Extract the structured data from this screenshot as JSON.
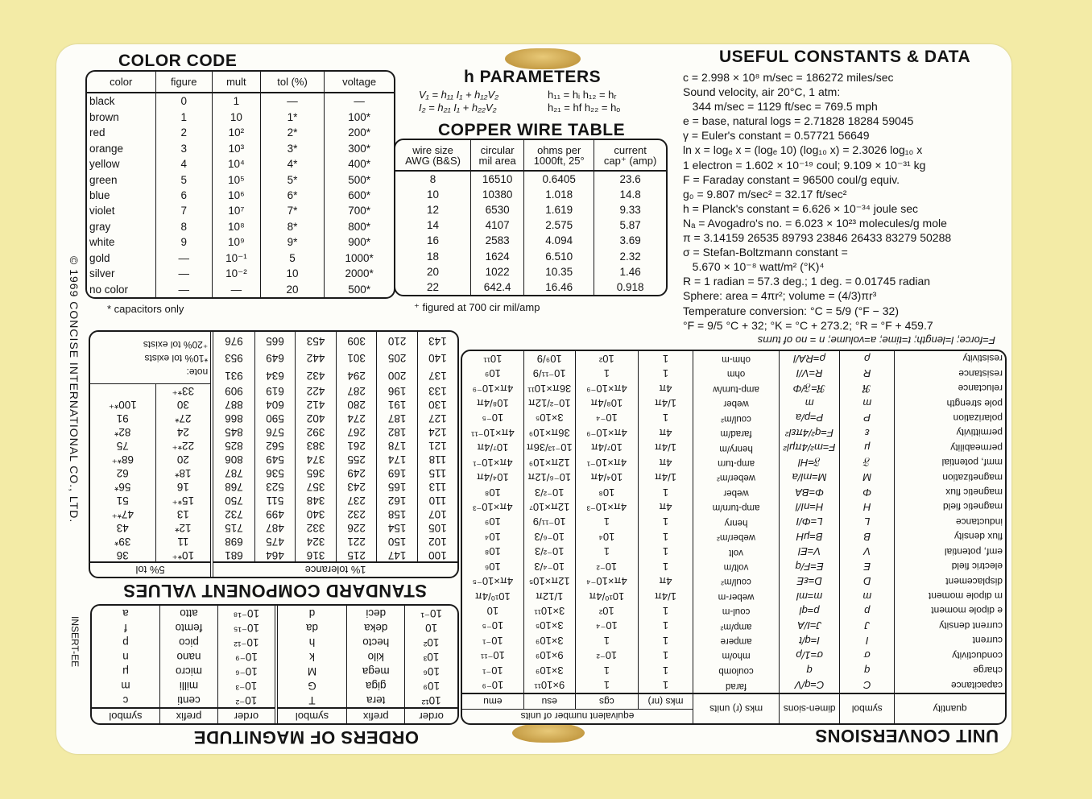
{
  "colors": {
    "background": "#f3eba6",
    "card": "#fdfdf9",
    "ink": "#141414",
    "slot": "#c9a24a"
  },
  "color_code": {
    "title": "COLOR CODE",
    "headers": [
      "color",
      "figure",
      "mult",
      "tol (%)",
      "voltage"
    ],
    "rows": [
      [
        "black",
        "0",
        "1",
        "—",
        "—"
      ],
      [
        "brown",
        "1",
        "10",
        "1*",
        "100*"
      ],
      [
        "red",
        "2",
        "10²",
        "2*",
        "200*"
      ],
      [
        "orange",
        "3",
        "10³",
        "3*",
        "300*"
      ],
      [
        "yellow",
        "4",
        "10⁴",
        "4*",
        "400*"
      ],
      [
        "green",
        "5",
        "10⁵",
        "5*",
        "500*"
      ],
      [
        "blue",
        "6",
        "10⁶",
        "6*",
        "600*"
      ],
      [
        "violet",
        "7",
        "10⁷",
        "7*",
        "700*"
      ],
      [
        "gray",
        "8",
        "10⁸",
        "8*",
        "800*"
      ],
      [
        "white",
        "9",
        "10⁹",
        "9*",
        "900*"
      ],
      [
        "gold",
        "—",
        "10⁻¹",
        "5",
        "1000*"
      ],
      [
        "silver",
        "—",
        "10⁻²",
        "10",
        "2000*"
      ],
      [
        "no color",
        "—",
        "—",
        "20",
        "500*"
      ]
    ],
    "footnote": "* capacitors only"
  },
  "h_parameters": {
    "title": "h PARAMETERS",
    "eq1": "V₁ = h₁₁ I₁ + h₁₂V₂",
    "eq2": "I₂ = h₂₁ I₁ + h₂₂V₂",
    "def1": "h₁₁ = hᵢ   h₁₂ = hᵣ",
    "def2": "h₂₁ = hf   h₂₂ = hₒ"
  },
  "copper_wire": {
    "title": "COPPER WIRE TABLE",
    "headers": [
      [
        "wire size",
        "AWG (B&S)"
      ],
      [
        "circular",
        "mil area"
      ],
      [
        "ohms per",
        "1000ft, 25°"
      ],
      [
        "current",
        "cap⁺ (amp)"
      ]
    ],
    "rows": [
      [
        "8",
        "16510",
        "0.6405",
        "23.6"
      ],
      [
        "10",
        "10380",
        "1.018",
        "14.8"
      ],
      [
        "12",
        "6530",
        "1.619",
        "9.33"
      ],
      [
        "14",
        "4107",
        "2.575",
        "5.87"
      ],
      [
        "16",
        "2583",
        "4.094",
        "3.69"
      ],
      [
        "18",
        "1624",
        "6.510",
        "2.32"
      ],
      [
        "20",
        "1022",
        "10.35",
        "1.46"
      ],
      [
        "22",
        "642.4",
        "16.46",
        "0.918"
      ]
    ],
    "footnote": "⁺ figured at 700 cir mil/amp"
  },
  "constants": {
    "title": "USEFUL CONSTANTS & DATA",
    "lines": [
      "c = 2.998 × 10⁸ m/sec = 186272 miles/sec",
      "Sound velocity, air 20°C, 1 atm:",
      "   344 m/sec = 1129 ft/sec = 769.5 mph",
      "e = base, natural logs = 2.71828 18284 59045",
      "γ = Euler's constant = 0.57721 56649",
      "ln x = logₑ x = (logₑ 10) (log₁₀ x) = 2.3026 log₁₀ x",
      "1 electron = 1.602 × 10⁻¹⁹ coul; 9.109 × 10⁻³¹ kg",
      "F = Faraday constant = 96500 coul/g equiv.",
      "g₀ = 9.807 m/sec² = 32.17 ft/sec²",
      "h = Planck's constant = 6.626 × 10⁻³⁴ joule sec",
      "Nₐ = Avogadro's no. = 6.023 × 10²³ molecules/g mole",
      "π = 3.14159 26535 89793 23846 26433 83279 50288",
      "σ = Stefan-Boltzmann constant =",
      "   5.670 × 10⁻⁸ watt/m² (°K)⁴",
      "R = 1 radian = 57.3 deg.; 1 deg. = 0.01745 radian",
      "Sphere: area = 4πr²; volume = (4/3)πr³",
      "Temperature conversion: °C = 5/9 (°F − 32)",
      "°F = 9/5 °C + 32; °K = °C + 273.2; °R = °F + 459.7"
    ]
  },
  "copyright": "© 1969 CONCISE INTERNATIONAL CO., LTD.",
  "insert_code": "INSERT-EE",
  "standard_values": {
    "title": "STANDARD COMPONENT VALUES",
    "header_1pct": "1% tolerance",
    "header_5pct": "5% tol",
    "one_percent_columns": [
      [
        "100",
        "102",
        "105",
        "107",
        "110",
        "113",
        "115",
        "118",
        "121",
        "124",
        "127",
        "130",
        "133",
        "137",
        "140",
        "143"
      ],
      [
        "147",
        "150",
        "154",
        "158",
        "162",
        "165",
        "169",
        "174",
        "178",
        "182",
        "187",
        "191",
        "196",
        "200",
        "205",
        "210"
      ],
      [
        "215",
        "221",
        "226",
        "232",
        "237",
        "243",
        "249",
        "255",
        "261",
        "267",
        "274",
        "280",
        "287",
        "294",
        "301",
        "309"
      ],
      [
        "316",
        "324",
        "332",
        "340",
        "348",
        "357",
        "365",
        "374",
        "383",
        "392",
        "402",
        "412",
        "422",
        "432",
        "442",
        "453"
      ],
      [
        "464",
        "475",
        "487",
        "499",
        "511",
        "523",
        "536",
        "549",
        "562",
        "576",
        "590",
        "604",
        "619",
        "634",
        "649",
        "665"
      ],
      [
        "681",
        "698",
        "715",
        "732",
        "750",
        "768",
        "787",
        "806",
        "825",
        "845",
        "866",
        "887",
        "909",
        "931",
        "953",
        "976"
      ]
    ],
    "five_percent_columns": [
      [
        "10*⁺",
        "11",
        "12*",
        "13",
        "15*⁺",
        "16",
        "18*",
        "20",
        "22*⁺",
        "24",
        "27*",
        "30",
        "33*⁺"
      ],
      [
        "36",
        "39*",
        "43",
        "47*⁺",
        "51",
        "56*",
        "62",
        "68*⁺",
        "75",
        "82*",
        "91",
        "100*⁺"
      ]
    ],
    "note": [
      "note:",
      "*10% tol exists",
      "⁺20% tol exists"
    ]
  },
  "orders_of_magnitude": {
    "title": "ORDERS OF MAGNITUDE",
    "headers": [
      "order",
      "prefix",
      "symbol",
      "order",
      "prefix",
      "symbol"
    ],
    "rows": [
      [
        "10¹²",
        "tera",
        "T",
        "10⁻²",
        "centi",
        "c"
      ],
      [
        "10⁹",
        "giga",
        "G",
        "10⁻³",
        "milli",
        "m"
      ],
      [
        "10⁶",
        "mega",
        "M",
        "10⁻⁶",
        "micro",
        "μ"
      ],
      [
        "10³",
        "kilo",
        "k",
        "10⁻⁹",
        "nano",
        "n"
      ],
      [
        "10²",
        "hecto",
        "h",
        "10⁻¹²",
        "pico",
        "p"
      ],
      [
        "10",
        "deka",
        "da",
        "10⁻¹⁵",
        "femto",
        "f"
      ],
      [
        "10⁻¹",
        "deci",
        "d",
        "10⁻¹⁸",
        "atto",
        "a"
      ]
    ]
  },
  "unit_conversions": {
    "title": "UNIT CONVERSIONS",
    "headers": {
      "quantity": "quantity",
      "symbol": "symbol",
      "dimensions": "dimen-sions",
      "mks_units": "mks (r) units",
      "equivalent": "equivalent number of units",
      "sub": [
        "mks (nr)",
        "cgs",
        "esu",
        "emu"
      ]
    },
    "rows": [
      [
        "capacitance",
        "C",
        "C=q/V",
        "farad",
        "1",
        "1",
        "9×10¹¹",
        "10⁻⁹"
      ],
      [
        "charge",
        "q",
        "q",
        "coulomb",
        "1",
        "1",
        "3×10⁹",
        "10⁻¹"
      ],
      [
        "conductivity",
        "σ",
        "σ=1/ρ",
        "mho/m",
        "1",
        "10⁻²",
        "9×10⁹",
        "10⁻¹¹"
      ],
      [
        "current",
        "I",
        "I=q/t",
        "ampere",
        "1",
        "1",
        "3×10⁹",
        "10⁻¹"
      ],
      [
        "current density",
        "J",
        "J=I/A",
        "amp/m²",
        "1",
        "10⁻⁴",
        "3×10⁵",
        "10⁻⁵"
      ],
      [
        "e dipole moment",
        "p",
        "p=ql",
        "coul-m",
        "1",
        "10²",
        "3×10¹¹",
        "10"
      ],
      [
        "m dipole moment",
        "m",
        "m=ml",
        "weber-m",
        "1/4π",
        "10¹⁰/4π",
        "1/12π",
        "10¹⁰/4π"
      ],
      [
        "displacement",
        "D",
        "D=εE",
        "coul/m²",
        "4π",
        "4π×10⁻⁴",
        "12π×10⁵",
        "4π×10⁻⁵"
      ],
      [
        "electric field",
        "E",
        "E=F/q",
        "volt/m",
        "1",
        "10⁻²",
        "10⁻⁴/3",
        "10⁶"
      ],
      [
        "emf, potential",
        "V",
        "V=El",
        "volt",
        "1",
        "1",
        "10⁻²/3",
        "10⁸"
      ],
      [
        "flux density",
        "B",
        "B=μH",
        "weber/m²",
        "1",
        "10⁴",
        "10⁻⁶/3",
        "10⁴"
      ],
      [
        "inductance",
        "L",
        "L=Φ/I",
        "henry",
        "1",
        "1",
        "10⁻¹¹/9",
        "10⁹"
      ],
      [
        "magnetic field",
        "H",
        "H=nI/l",
        "amp-turn/m",
        "4π",
        "4π×10⁻³",
        "12π×10⁷",
        "4π×10⁻³"
      ],
      [
        "magnetic flux",
        "Φ",
        "Φ=BA",
        "weber",
        "1",
        "10⁸",
        "10⁻²/3",
        "10⁸"
      ],
      [
        "magnetization",
        "M",
        "M=ml/a",
        "weber/m²",
        "1/4π",
        "10⁴/4π",
        "10⁻⁶/12π",
        "10⁴/4π"
      ],
      [
        "mmf, potential",
        "𝔉",
        "𝔉=Hl",
        "amp-turn",
        "4π",
        "4π×10⁻¹",
        "12π×10⁹",
        "4π×10⁻¹"
      ],
      [
        "permeability",
        "μ",
        "F=m²/4πμl²",
        "henry/m",
        "1/4π",
        "10⁷/4π",
        "10⁻¹³/36π",
        "10⁷/4π"
      ],
      [
        "permittivity",
        "ε",
        "F=q²/4πεl²",
        "farad/m",
        "4π",
        "4π×10⁻⁹",
        "36π×10⁹",
        "4π×10⁻¹¹"
      ],
      [
        "polarization",
        "P",
        "P=p/a",
        "coul/m²",
        "1",
        "10⁻⁴",
        "3×10⁵",
        "10⁻⁵"
      ],
      [
        "pole strength",
        "m",
        "m",
        "weber",
        "1/4π",
        "10⁸/4π",
        "10⁻²/12π",
        "10⁸/4π"
      ],
      [
        "reluctance",
        "ℜ",
        "ℜ=𝔉/Φ",
        "amp-turn/w",
        "4π",
        "4π×10⁻⁹",
        "36π×10¹¹",
        "4π×10⁻⁹"
      ],
      [
        "resistance",
        "R",
        "R=V/I",
        "ohm",
        "1",
        "1",
        "10⁻¹¹/9",
        "10⁹"
      ],
      [
        "resistivity",
        "ρ",
        "ρ=RA/l",
        "ohm-m",
        "1",
        "10²",
        "10⁹/9",
        "10¹¹"
      ]
    ],
    "footer": "F=force; l=length; t=time; a=volume; n = no of turns"
  }
}
